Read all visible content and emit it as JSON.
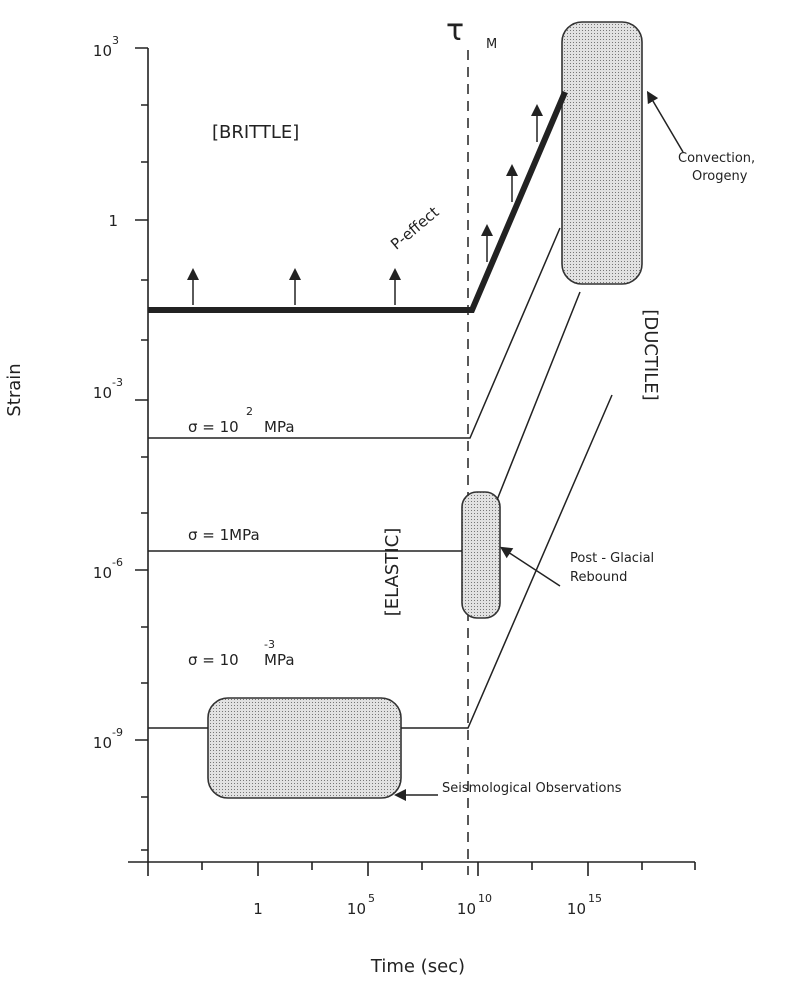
{
  "y_axis": {
    "label": "Strain",
    "ticks": [
      {
        "base": "10",
        "exp": "3"
      },
      {
        "base": "1"
      },
      {
        "base": "10",
        "exp": "-3"
      },
      {
        "base": "10",
        "exp": "-6"
      },
      {
        "base": "10",
        "exp": "-9"
      }
    ]
  },
  "x_axis": {
    "label": "Time (sec)",
    "ticks": [
      {
        "base": "1"
      },
      {
        "base": "10",
        "exp": "5"
      },
      {
        "base": "10",
        "exp": "10"
      },
      {
        "base": "10",
        "exp": "15"
      }
    ]
  },
  "tau": {
    "symbol": "τ",
    "sub": "M"
  },
  "regions": {
    "brittle": "[BRITTLE]",
    "elastic": "[ELASTIC]",
    "ductile": "[DUCTILE]"
  },
  "p_effect": "P-effect",
  "stress": [
    {
      "base": "σ = 10",
      "exp": "2",
      "unit": "MPa"
    },
    {
      "base": "σ = 1MPa"
    },
    {
      "base": "σ = 10",
      "exp": "-3",
      "unit": "MPa"
    }
  ],
  "observations": {
    "convection": [
      "Convection,",
      "Orogeny"
    ],
    "post_glacial": [
      "Post - Glacial",
      "Rebound"
    ],
    "seismological": "Seismological Observations"
  }
}
